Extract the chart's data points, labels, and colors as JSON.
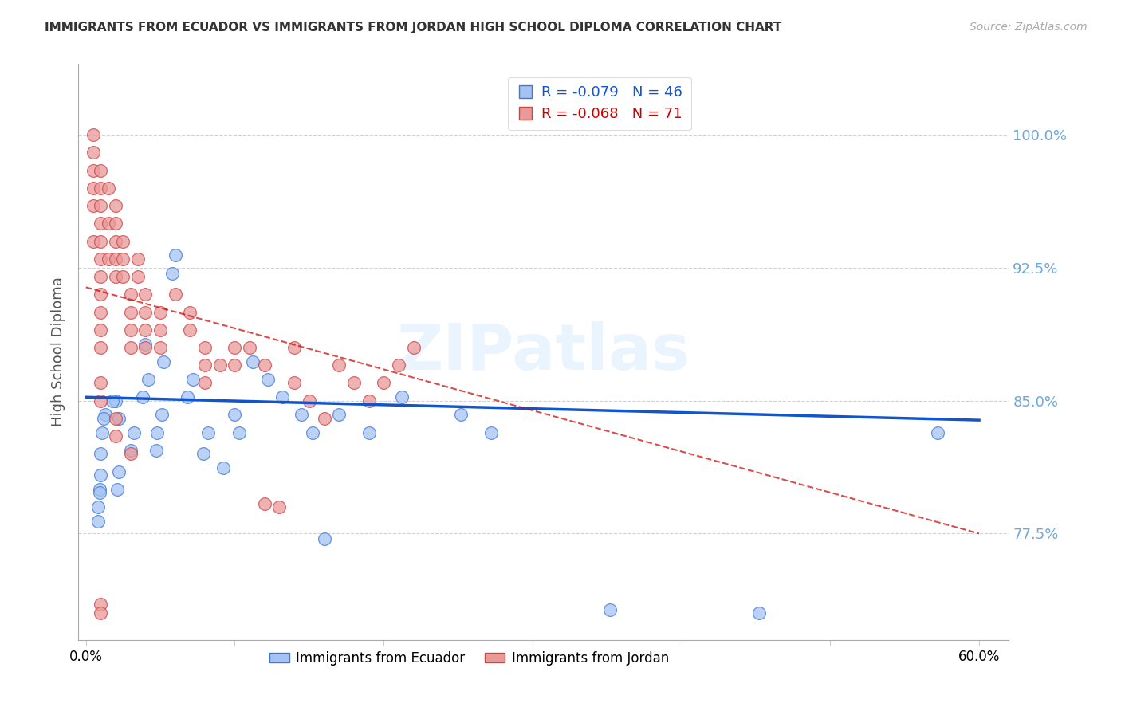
{
  "title": "IMMIGRANTS FROM ECUADOR VS IMMIGRANTS FROM JORDAN HIGH SCHOOL DIPLOMA CORRELATION CHART",
  "source": "Source: ZipAtlas.com",
  "ylabel": "High School Diploma",
  "ytick_labels": [
    "100.0%",
    "92.5%",
    "85.0%",
    "77.5%"
  ],
  "ytick_values": [
    1.0,
    0.925,
    0.85,
    0.775
  ],
  "xlim": [
    -0.005,
    0.62
  ],
  "ylim": [
    0.715,
    1.04
  ],
  "ecuador_r": "-0.079",
  "ecuador_n": "46",
  "jordan_r": "-0.068",
  "jordan_n": "71",
  "ecuador_face_color": "#a4c2f4",
  "ecuador_edge_color": "#3c78d8",
  "jordan_face_color": "#ea9999",
  "jordan_edge_color": "#cc4444",
  "ecuador_line_color": "#1155cc",
  "jordan_line_color": "#cc0000",
  "watermark_text": "ZIPatlas",
  "watermark_color": "#ddeeff",
  "legend_ecuador_label": "Immigrants from Ecuador",
  "legend_jordan_label": "Immigrants from Jordan",
  "ecuador_x": [
    0.02,
    0.018,
    0.013,
    0.012,
    0.011,
    0.01,
    0.01,
    0.009,
    0.009,
    0.008,
    0.008,
    0.022,
    0.032,
    0.03,
    0.022,
    0.021,
    0.04,
    0.042,
    0.038,
    0.052,
    0.051,
    0.048,
    0.047,
    0.06,
    0.058,
    0.072,
    0.068,
    0.082,
    0.079,
    0.092,
    0.1,
    0.103,
    0.112,
    0.122,
    0.132,
    0.145,
    0.152,
    0.16,
    0.17,
    0.19,
    0.212,
    0.252,
    0.272,
    0.352,
    0.452,
    0.572
  ],
  "ecuador_y": [
    0.85,
    0.85,
    0.842,
    0.84,
    0.832,
    0.82,
    0.808,
    0.8,
    0.798,
    0.79,
    0.782,
    0.84,
    0.832,
    0.822,
    0.81,
    0.8,
    0.882,
    0.862,
    0.852,
    0.872,
    0.842,
    0.832,
    0.822,
    0.932,
    0.922,
    0.862,
    0.852,
    0.832,
    0.82,
    0.812,
    0.842,
    0.832,
    0.872,
    0.862,
    0.852,
    0.842,
    0.832,
    0.772,
    0.842,
    0.832,
    0.852,
    0.842,
    0.832,
    0.732,
    0.73,
    0.832
  ],
  "jordan_x": [
    0.005,
    0.005,
    0.005,
    0.005,
    0.005,
    0.005,
    0.01,
    0.01,
    0.01,
    0.01,
    0.01,
    0.01,
    0.01,
    0.01,
    0.01,
    0.01,
    0.01,
    0.015,
    0.015,
    0.015,
    0.02,
    0.02,
    0.02,
    0.02,
    0.02,
    0.025,
    0.025,
    0.025,
    0.03,
    0.03,
    0.03,
    0.03,
    0.035,
    0.035,
    0.04,
    0.04,
    0.04,
    0.04,
    0.05,
    0.05,
    0.05,
    0.06,
    0.07,
    0.07,
    0.08,
    0.08,
    0.08,
    0.09,
    0.1,
    0.1,
    0.11,
    0.12,
    0.12,
    0.13,
    0.14,
    0.14,
    0.15,
    0.16,
    0.17,
    0.18,
    0.19,
    0.2,
    0.21,
    0.22,
    0.01,
    0.01,
    0.01,
    0.01,
    0.02,
    0.02,
    0.03
  ],
  "jordan_y": [
    1.0,
    0.99,
    0.98,
    0.97,
    0.96,
    0.94,
    0.98,
    0.97,
    0.96,
    0.95,
    0.94,
    0.93,
    0.92,
    0.91,
    0.9,
    0.89,
    0.88,
    0.97,
    0.95,
    0.93,
    0.96,
    0.95,
    0.94,
    0.93,
    0.92,
    0.94,
    0.93,
    0.92,
    0.91,
    0.9,
    0.89,
    0.88,
    0.93,
    0.92,
    0.91,
    0.9,
    0.89,
    0.88,
    0.9,
    0.89,
    0.88,
    0.91,
    0.9,
    0.89,
    0.88,
    0.87,
    0.86,
    0.87,
    0.88,
    0.87,
    0.88,
    0.87,
    0.792,
    0.79,
    0.88,
    0.86,
    0.85,
    0.84,
    0.87,
    0.86,
    0.85,
    0.86,
    0.87,
    0.88,
    0.735,
    0.73,
    0.86,
    0.85,
    0.84,
    0.83,
    0.82
  ],
  "ecuador_trend_x": [
    0.0,
    0.6
  ],
  "ecuador_trend_y": [
    0.852,
    0.839
  ],
  "jordan_trend_x": [
    0.0,
    0.6
  ],
  "jordan_trend_y": [
    0.914,
    0.775
  ]
}
